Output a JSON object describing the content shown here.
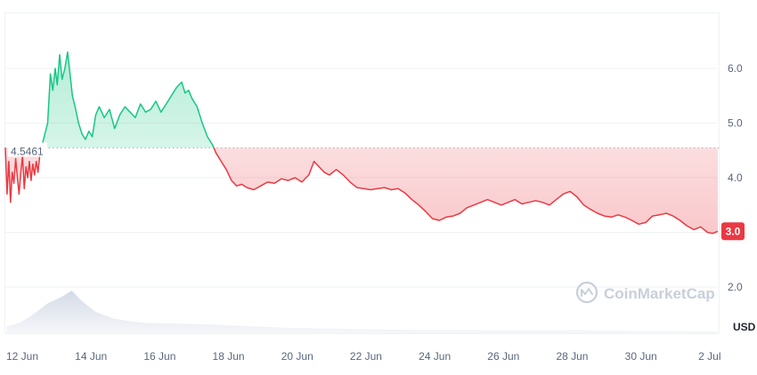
{
  "chart_data": {
    "type": "line",
    "baseline": 4.5461,
    "baseline_label": "4.5461",
    "current_label": "3.0",
    "currency_label": "USD",
    "watermark": "CoinMarketCap",
    "y_ticks": [
      {
        "value": 6.0,
        "label": "6.0"
      },
      {
        "value": 5.0,
        "label": "5.0"
      },
      {
        "value": 4.0,
        "label": "4.0"
      },
      {
        "value": 3.0,
        "label": "3.0"
      },
      {
        "value": 2.0,
        "label": "2.0"
      }
    ],
    "x_ticks": [
      {
        "day": 12,
        "label": "12 Jun"
      },
      {
        "day": 14,
        "label": "14 Jun"
      },
      {
        "day": 16,
        "label": "16 Jun"
      },
      {
        "day": 18,
        "label": "18 Jun"
      },
      {
        "day": 20,
        "label": "20 Jun"
      },
      {
        "day": 22,
        "label": "22 Jun"
      },
      {
        "day": 24,
        "label": "24 Jun"
      },
      {
        "day": 26,
        "label": "26 Jun"
      },
      {
        "day": 28,
        "label": "28 Jun"
      },
      {
        "day": 30,
        "label": "30 Jun"
      },
      {
        "day": 32,
        "label": "2 Jul"
      }
    ],
    "series": [
      {
        "values": [
          [
            11.87,
            4.55
          ],
          [
            11.92,
            3.7
          ],
          [
            11.97,
            4.3
          ],
          [
            12.02,
            3.55
          ],
          [
            12.07,
            4.1
          ],
          [
            12.12,
            3.9
          ],
          [
            12.17,
            4.35
          ],
          [
            12.22,
            4.0
          ],
          [
            12.27,
            3.7
          ],
          [
            12.32,
            4.1
          ],
          [
            12.37,
            4.4
          ],
          [
            12.42,
            3.8
          ],
          [
            12.47,
            4.2
          ],
          [
            12.52,
            4.0
          ],
          [
            12.57,
            4.3
          ],
          [
            12.62,
            3.95
          ],
          [
            12.67,
            4.25
          ],
          [
            12.72,
            4.05
          ],
          [
            12.77,
            4.3
          ],
          [
            12.82,
            4.1
          ],
          [
            12.87,
            4.4
          ],
          [
            12.92,
            4.55
          ],
          [
            13.1,
            5.0
          ],
          [
            13.18,
            5.9
          ],
          [
            13.25,
            5.6
          ],
          [
            13.32,
            6.0
          ],
          [
            13.38,
            5.7
          ],
          [
            13.45,
            6.25
          ],
          [
            13.52,
            5.8
          ],
          [
            13.6,
            6.0
          ],
          [
            13.68,
            6.3
          ],
          [
            13.75,
            5.9
          ],
          [
            13.82,
            5.5
          ],
          [
            13.9,
            5.3
          ],
          [
            14.0,
            5.0
          ],
          [
            14.1,
            4.8
          ],
          [
            14.2,
            4.7
          ],
          [
            14.3,
            4.85
          ],
          [
            14.4,
            4.75
          ],
          [
            14.5,
            5.15
          ],
          [
            14.6,
            5.3
          ],
          [
            14.75,
            5.1
          ],
          [
            14.9,
            5.25
          ],
          [
            15.05,
            4.9
          ],
          [
            15.2,
            5.15
          ],
          [
            15.35,
            5.3
          ],
          [
            15.5,
            5.2
          ],
          [
            15.65,
            5.1
          ],
          [
            15.8,
            5.35
          ],
          [
            15.95,
            5.2
          ],
          [
            16.1,
            5.25
          ],
          [
            16.25,
            5.4
          ],
          [
            16.4,
            5.2
          ],
          [
            16.55,
            5.35
          ],
          [
            16.7,
            5.5
          ],
          [
            16.85,
            5.65
          ],
          [
            17.0,
            5.75
          ],
          [
            17.1,
            5.55
          ],
          [
            17.2,
            5.6
          ],
          [
            17.3,
            5.45
          ],
          [
            17.45,
            5.3
          ],
          [
            17.6,
            5.0
          ],
          [
            17.75,
            4.75
          ],
          [
            17.9,
            4.6
          ],
          [
            18.0,
            4.45
          ],
          [
            18.15,
            4.3
          ],
          [
            18.3,
            4.15
          ],
          [
            18.45,
            3.95
          ],
          [
            18.6,
            3.85
          ],
          [
            18.75,
            3.88
          ],
          [
            18.9,
            3.82
          ],
          [
            19.1,
            3.78
          ],
          [
            19.3,
            3.85
          ],
          [
            19.5,
            3.92
          ],
          [
            19.7,
            3.9
          ],
          [
            19.9,
            3.98
          ],
          [
            20.1,
            3.95
          ],
          [
            20.3,
            4.0
          ],
          [
            20.5,
            3.92
          ],
          [
            20.7,
            4.05
          ],
          [
            20.85,
            4.3
          ],
          [
            21.0,
            4.2
          ],
          [
            21.15,
            4.1
          ],
          [
            21.3,
            4.05
          ],
          [
            21.5,
            4.15
          ],
          [
            21.7,
            4.05
          ],
          [
            21.9,
            3.92
          ],
          [
            22.1,
            3.82
          ],
          [
            22.3,
            3.8
          ],
          [
            22.5,
            3.78
          ],
          [
            22.7,
            3.8
          ],
          [
            22.9,
            3.82
          ],
          [
            23.1,
            3.78
          ],
          [
            23.3,
            3.8
          ],
          [
            23.5,
            3.72
          ],
          [
            23.7,
            3.6
          ],
          [
            23.9,
            3.5
          ],
          [
            24.1,
            3.38
          ],
          [
            24.3,
            3.25
          ],
          [
            24.5,
            3.22
          ],
          [
            24.7,
            3.28
          ],
          [
            24.9,
            3.3
          ],
          [
            25.1,
            3.35
          ],
          [
            25.3,
            3.45
          ],
          [
            25.5,
            3.5
          ],
          [
            25.7,
            3.55
          ],
          [
            25.9,
            3.6
          ],
          [
            26.1,
            3.55
          ],
          [
            26.3,
            3.5
          ],
          [
            26.5,
            3.55
          ],
          [
            26.7,
            3.6
          ],
          [
            26.9,
            3.52
          ],
          [
            27.1,
            3.55
          ],
          [
            27.3,
            3.58
          ],
          [
            27.5,
            3.55
          ],
          [
            27.7,
            3.5
          ],
          [
            27.9,
            3.6
          ],
          [
            28.1,
            3.7
          ],
          [
            28.3,
            3.75
          ],
          [
            28.5,
            3.65
          ],
          [
            28.7,
            3.5
          ],
          [
            28.9,
            3.42
          ],
          [
            29.1,
            3.35
          ],
          [
            29.3,
            3.3
          ],
          [
            29.5,
            3.28
          ],
          [
            29.7,
            3.32
          ],
          [
            29.9,
            3.28
          ],
          [
            30.1,
            3.22
          ],
          [
            30.3,
            3.15
          ],
          [
            30.5,
            3.18
          ],
          [
            30.7,
            3.3
          ],
          [
            30.9,
            3.32
          ],
          [
            31.1,
            3.35
          ],
          [
            31.3,
            3.3
          ],
          [
            31.5,
            3.22
          ],
          [
            31.7,
            3.12
          ],
          [
            31.9,
            3.05
          ],
          [
            32.1,
            3.1
          ],
          [
            32.3,
            3.0
          ],
          [
            32.45,
            2.98
          ],
          [
            32.6,
            3.02
          ]
        ]
      }
    ],
    "volume": [
      [
        11.9,
        0.15
      ],
      [
        12.3,
        0.25
      ],
      [
        12.7,
        0.45
      ],
      [
        13.1,
        0.7
      ],
      [
        13.5,
        0.85
      ],
      [
        13.8,
        1.0
      ],
      [
        14.1,
        0.75
      ],
      [
        14.5,
        0.5
      ],
      [
        15.0,
        0.35
      ],
      [
        15.5,
        0.28
      ],
      [
        16.0,
        0.24
      ],
      [
        17.0,
        0.22
      ],
      [
        18.0,
        0.2
      ],
      [
        19.0,
        0.16
      ],
      [
        20.0,
        0.13
      ],
      [
        22.0,
        0.1
      ],
      [
        24.0,
        0.08
      ],
      [
        26.0,
        0.07
      ],
      [
        28.0,
        0.07
      ],
      [
        30.0,
        0.06
      ],
      [
        32.0,
        0.05
      ],
      [
        32.6,
        0.04
      ]
    ],
    "colors": {
      "up": "#16c784",
      "down": "#ea3943",
      "up_fill": "#16c784",
      "down_fill": "#ea3943",
      "grid": "#eff2f5",
      "tick_text": "#58667e",
      "baseline_dots": "#a6b0c3",
      "volume": "#cfd6e4",
      "watermark": "#c3cad6"
    }
  }
}
